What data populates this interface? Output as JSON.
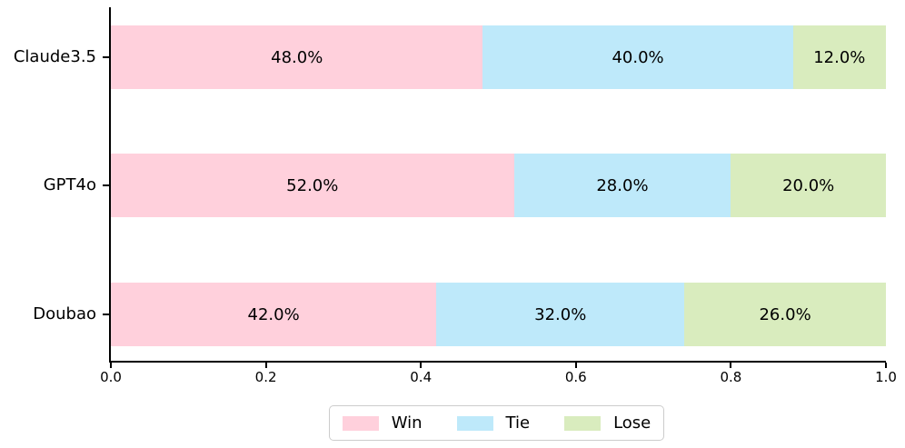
{
  "chart_data": {
    "type": "bar",
    "orientation": "horizontal",
    "stacked": true,
    "categories": [
      "Claude3.5",
      "GPT4o",
      "Doubao"
    ],
    "series": [
      {
        "name": "Win",
        "color": "#FFD0DC",
        "values": [
          48.0,
          52.0,
          42.0
        ],
        "labels": [
          "48.0%",
          "52.0%",
          "42.0%"
        ]
      },
      {
        "name": "Tie",
        "color": "#BEE9FA",
        "values": [
          40.0,
          28.0,
          32.0
        ],
        "labels": [
          "40.0%",
          "28.0%",
          "32.0%"
        ]
      },
      {
        "name": "Lose",
        "color": "#D9ECBE",
        "values": [
          12.0,
          20.0,
          26.0
        ],
        "labels": [
          "12.0%",
          "20.0%",
          "26.0%"
        ]
      }
    ],
    "xlim": [
      0.0,
      1.0
    ],
    "x_ticks": [
      "0.0",
      "0.2",
      "0.4",
      "0.6",
      "0.8",
      "1.0"
    ],
    "x_tick_values": [
      0.0,
      0.2,
      0.4,
      0.6,
      0.8,
      1.0
    ],
    "grid": false,
    "legend": {
      "position": "bottom-center",
      "entries": [
        "Win",
        "Tie",
        "Lose"
      ]
    }
  },
  "colors": {
    "spine": "#000000",
    "text": "#000000",
    "legend_border": "#cccccc",
    "background": "#ffffff"
  }
}
